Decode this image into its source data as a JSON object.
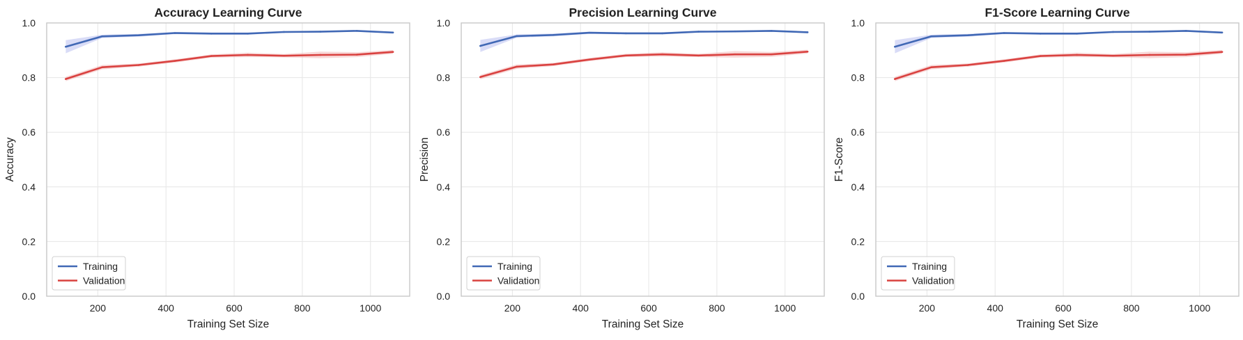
{
  "colors": {
    "training": "#4068b5",
    "validation": "#d9413f",
    "training_band": "#aab2ee",
    "validation_band": "#f0a9a9",
    "grid": "#e6e6e6",
    "frame": "#c8c8c8",
    "text": "#222222"
  },
  "chart_data": [
    {
      "type": "line",
      "title": "Accuracy Learning Curve",
      "xlabel": "Training Set Size",
      "ylabel": "Accuracy",
      "xlim": [
        50,
        1115
      ],
      "ylim": [
        0.0,
        1.0
      ],
      "xticks": [
        200,
        400,
        600,
        800,
        1000
      ],
      "yticks": [
        0.0,
        0.2,
        0.4,
        0.6,
        0.8,
        1.0
      ],
      "grid": true,
      "legend": "lower-left",
      "x": [
        106,
        213,
        320,
        426,
        533,
        640,
        746,
        853,
        960,
        1066
      ],
      "series": [
        {
          "name": "Training",
          "values": [
            0.913,
            0.951,
            0.955,
            0.963,
            0.961,
            0.961,
            0.967,
            0.968,
            0.971,
            0.965
          ],
          "band": [
            0.024,
            0.006,
            0.005,
            0.004,
            0.004,
            0.004,
            0.003,
            0.003,
            0.003,
            0.003
          ]
        },
        {
          "name": "Validation",
          "values": [
            0.795,
            0.838,
            0.846,
            0.861,
            0.879,
            0.883,
            0.88,
            0.883,
            0.884,
            0.894
          ],
          "band": [
            0.008,
            0.008,
            0.006,
            0.006,
            0.006,
            0.008,
            0.006,
            0.012,
            0.009,
            0.007
          ]
        }
      ]
    },
    {
      "type": "line",
      "title": "Precision Learning Curve",
      "xlabel": "Training Set Size",
      "ylabel": "Precision",
      "xlim": [
        50,
        1115
      ],
      "ylim": [
        0.0,
        1.0
      ],
      "xticks": [
        200,
        400,
        600,
        800,
        1000
      ],
      "yticks": [
        0.0,
        0.2,
        0.4,
        0.6,
        0.8,
        1.0
      ],
      "grid": true,
      "legend": "lower-left",
      "x": [
        106,
        213,
        320,
        426,
        533,
        640,
        746,
        853,
        960,
        1066
      ],
      "series": [
        {
          "name": "Training",
          "values": [
            0.916,
            0.952,
            0.956,
            0.964,
            0.962,
            0.962,
            0.968,
            0.969,
            0.971,
            0.966
          ],
          "band": [
            0.022,
            0.006,
            0.005,
            0.004,
            0.004,
            0.004,
            0.003,
            0.003,
            0.003,
            0.003
          ]
        },
        {
          "name": "Validation",
          "values": [
            0.802,
            0.84,
            0.848,
            0.866,
            0.881,
            0.885,
            0.881,
            0.885,
            0.885,
            0.895
          ],
          "band": [
            0.008,
            0.008,
            0.006,
            0.006,
            0.006,
            0.008,
            0.006,
            0.012,
            0.009,
            0.007
          ]
        }
      ]
    },
    {
      "type": "line",
      "title": "F1-Score Learning Curve",
      "xlabel": "Training Set Size",
      "ylabel": "F1-Score",
      "xlim": [
        50,
        1115
      ],
      "ylim": [
        0.0,
        1.0
      ],
      "xticks": [
        200,
        400,
        600,
        800,
        1000
      ],
      "yticks": [
        0.0,
        0.2,
        0.4,
        0.6,
        0.8,
        1.0
      ],
      "grid": true,
      "legend": "lower-left",
      "x": [
        106,
        213,
        320,
        426,
        533,
        640,
        746,
        853,
        960,
        1066
      ],
      "series": [
        {
          "name": "Training",
          "values": [
            0.913,
            0.951,
            0.955,
            0.963,
            0.961,
            0.961,
            0.967,
            0.968,
            0.971,
            0.965
          ],
          "band": [
            0.024,
            0.006,
            0.005,
            0.004,
            0.004,
            0.004,
            0.003,
            0.003,
            0.003,
            0.003
          ]
        },
        {
          "name": "Validation",
          "values": [
            0.795,
            0.838,
            0.846,
            0.861,
            0.879,
            0.883,
            0.88,
            0.883,
            0.884,
            0.894
          ],
          "band": [
            0.008,
            0.008,
            0.006,
            0.006,
            0.006,
            0.008,
            0.006,
            0.012,
            0.009,
            0.007
          ]
        }
      ]
    }
  ]
}
